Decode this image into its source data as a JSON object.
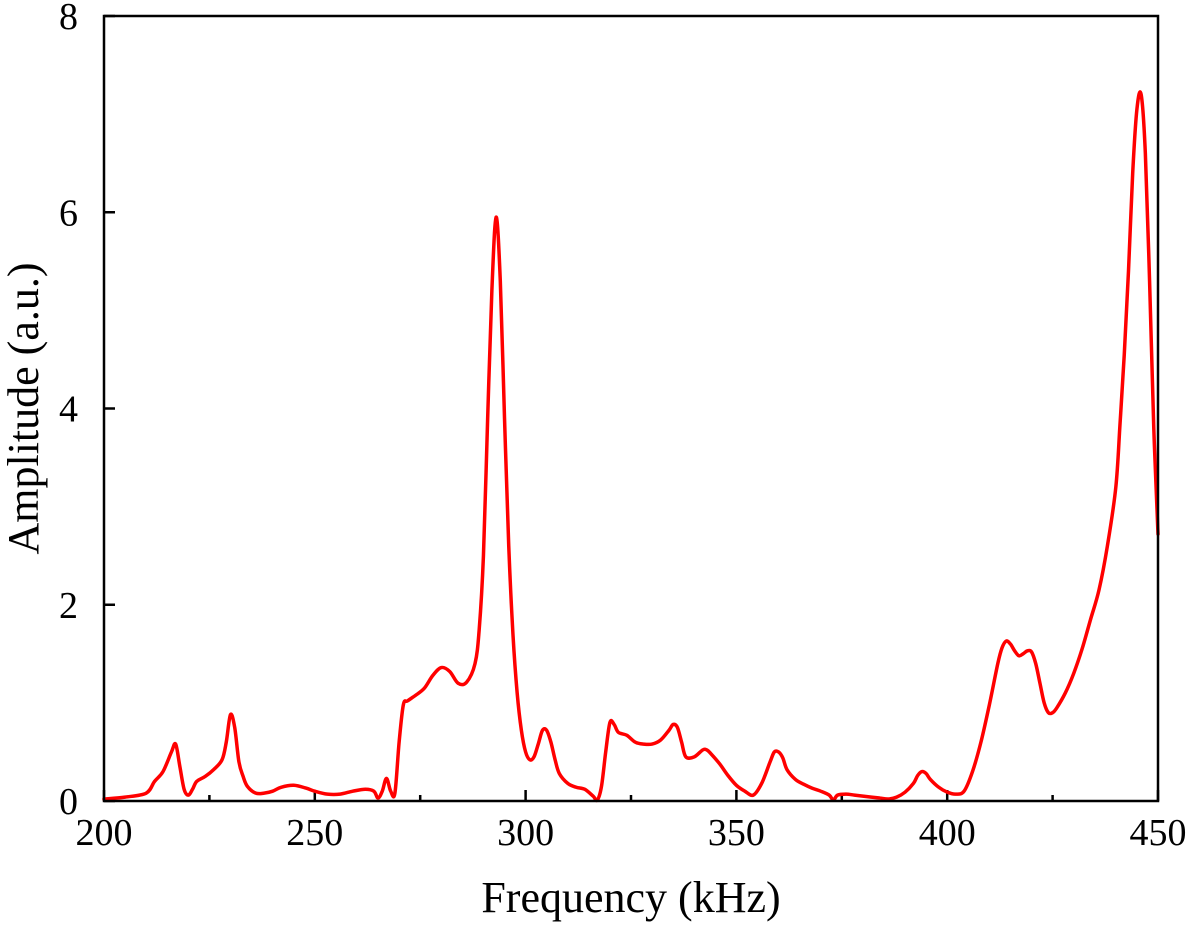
{
  "chart_data": {
    "type": "line",
    "xlabel": "Frequency (kHz)",
    "ylabel": "Amplitude (a.u.)",
    "xlim": [
      200,
      450
    ],
    "ylim": [
      0,
      8
    ],
    "xticks": [
      200,
      250,
      300,
      350,
      400,
      450
    ],
    "yticks": [
      0,
      2,
      4,
      6,
      8
    ],
    "x_minor_step": 25,
    "grid": false,
    "legend": "none",
    "colors": {
      "series": "#ff0000",
      "axes": "#000000",
      "background": "#ffffff"
    },
    "series": [
      {
        "x": [
          200,
          205,
          210,
          212,
          214,
          216,
          217,
          218,
          219,
          220,
          221,
          222,
          224,
          226,
          228,
          229,
          230,
          231,
          232,
          233,
          234,
          236,
          238,
          240,
          242,
          245,
          248,
          250,
          253,
          256,
          259,
          262,
          264,
          265,
          266,
          267,
          268,
          269,
          270,
          271,
          272,
          274,
          276,
          278,
          280,
          282,
          284,
          286,
          288,
          289,
          290,
          291,
          292,
          293,
          294,
          295,
          296,
          297,
          298,
          299,
          300,
          301,
          302,
          303,
          304,
          305,
          306,
          307,
          308,
          310,
          312,
          314,
          316,
          317,
          318,
          319,
          320,
          321,
          322,
          324,
          326,
          328,
          330,
          332,
          334,
          335,
          336,
          337,
          338,
          340,
          342,
          343,
          344,
          346,
          348,
          350,
          352,
          354,
          356,
          358,
          359,
          360,
          361,
          362,
          364,
          366,
          368,
          370,
          372,
          373,
          374,
          376,
          378,
          380,
          382,
          384,
          386,
          388,
          390,
          392,
          393,
          394,
          395,
          396,
          398,
          400,
          402,
          404,
          406,
          408,
          410,
          412,
          413,
          414,
          415,
          416,
          417,
          418,
          419,
          420,
          421,
          422,
          423,
          424,
          425,
          426,
          428,
          430,
          432,
          434,
          436,
          438,
          440,
          441,
          442,
          443,
          444,
          445,
          446,
          447,
          448,
          449,
          450
        ],
        "y": [
          0.02,
          0.04,
          0.08,
          0.2,
          0.3,
          0.5,
          0.58,
          0.35,
          0.12,
          0.06,
          0.12,
          0.2,
          0.25,
          0.32,
          0.42,
          0.6,
          0.88,
          0.75,
          0.4,
          0.25,
          0.15,
          0.08,
          0.08,
          0.1,
          0.14,
          0.16,
          0.13,
          0.1,
          0.07,
          0.07,
          0.1,
          0.12,
          0.1,
          0.03,
          0.1,
          0.23,
          0.1,
          0.08,
          0.6,
          0.98,
          1.02,
          1.08,
          1.15,
          1.28,
          1.36,
          1.32,
          1.2,
          1.21,
          1.4,
          1.75,
          2.5,
          3.9,
          5.2,
          5.95,
          5.3,
          3.9,
          2.6,
          1.7,
          1.1,
          0.72,
          0.5,
          0.42,
          0.45,
          0.58,
          0.72,
          0.72,
          0.6,
          0.42,
          0.28,
          0.18,
          0.14,
          0.12,
          0.05,
          0.01,
          0.15,
          0.5,
          0.8,
          0.78,
          0.7,
          0.67,
          0.6,
          0.58,
          0.58,
          0.62,
          0.72,
          0.78,
          0.75,
          0.6,
          0.45,
          0.45,
          0.52,
          0.52,
          0.48,
          0.38,
          0.26,
          0.16,
          0.1,
          0.06,
          0.18,
          0.4,
          0.5,
          0.5,
          0.44,
          0.32,
          0.22,
          0.17,
          0.13,
          0.1,
          0.06,
          0.01,
          0.06,
          0.07,
          0.06,
          0.05,
          0.04,
          0.03,
          0.02,
          0.04,
          0.09,
          0.18,
          0.26,
          0.3,
          0.28,
          0.22,
          0.14,
          0.09,
          0.07,
          0.1,
          0.3,
          0.6,
          0.98,
          1.4,
          1.56,
          1.63,
          1.6,
          1.53,
          1.48,
          1.5,
          1.53,
          1.52,
          1.4,
          1.2,
          1.0,
          0.9,
          0.9,
          0.95,
          1.1,
          1.3,
          1.55,
          1.85,
          2.15,
          2.6,
          3.2,
          3.85,
          4.55,
          5.4,
          6.4,
          7.05,
          7.2,
          6.6,
          5.3,
          3.8,
          2.72
        ]
      }
    ]
  }
}
